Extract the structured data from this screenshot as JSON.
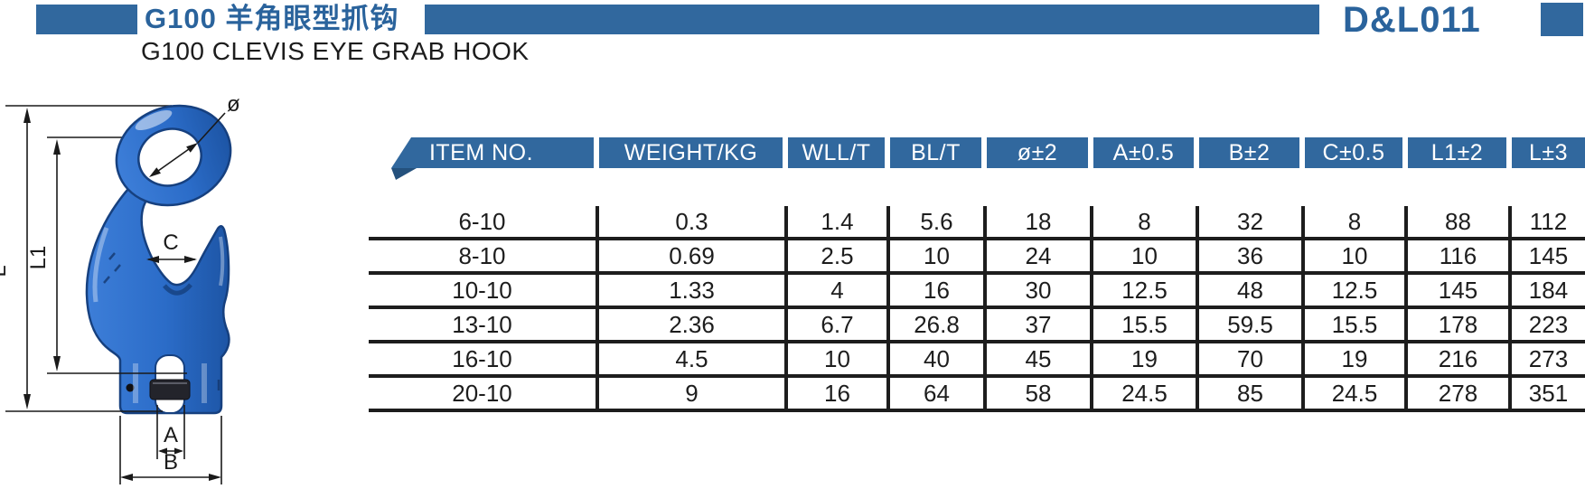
{
  "header": {
    "title_cn": "G100 羊角眼型抓钩",
    "title_en": "G100 CLEVIS EYE GRAB HOOK",
    "code": "D&L011",
    "accent_color": "#31689e"
  },
  "diagram": {
    "hook_color": "#2b6cc8",
    "labels": {
      "diameter": "ø",
      "l1": "L1",
      "l": "L",
      "c": "C",
      "a": "A",
      "b": "B"
    }
  },
  "table": {
    "columns": [
      "ITEM NO.",
      "WEIGHT/KG",
      "WLL/T",
      "BL/T",
      "ø±2",
      "A±0.5",
      "B±2",
      "C±0.5",
      "L1±2",
      "L±3"
    ],
    "rows": [
      [
        "6-10",
        "0.3",
        "1.4",
        "5.6",
        "18",
        "8",
        "32",
        "8",
        "88",
        "112"
      ],
      [
        "8-10",
        "0.69",
        "2.5",
        "10",
        "24",
        "10",
        "36",
        "10",
        "116",
        "145"
      ],
      [
        "10-10",
        "1.33",
        "4",
        "16",
        "30",
        "12.5",
        "48",
        "12.5",
        "145",
        "184"
      ],
      [
        "13-10",
        "2.36",
        "6.7",
        "26.8",
        "37",
        "15.5",
        "59.5",
        "15.5",
        "178",
        "223"
      ],
      [
        "16-10",
        "4.5",
        "10",
        "40",
        "45",
        "19",
        "70",
        "19",
        "216",
        "273"
      ],
      [
        "20-10",
        "9",
        "16",
        "64",
        "58",
        "24.5",
        "85",
        "24.5",
        "278",
        "351"
      ]
    ]
  }
}
